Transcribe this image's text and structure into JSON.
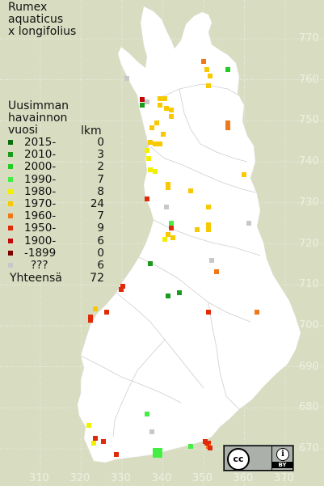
{
  "title": [
    "Rumex",
    "aquaticus",
    "x longifolius"
  ],
  "legend_title": [
    "Uusimman",
    "havainnon",
    "vuosi"
  ],
  "count_header": "lkm",
  "legend": [
    {
      "label": "2015-",
      "count": "0",
      "color": "#0a6e0a"
    },
    {
      "label": "2010-",
      "count": "3",
      "color": "#1c9a1c"
    },
    {
      "label": "2000-",
      "count": "2",
      "color": "#22cc22"
    },
    {
      "label": "1990-",
      "count": "7",
      "color": "#44ee44"
    },
    {
      "label": "1980-",
      "count": "8",
      "color": "#f0f000"
    },
    {
      "label": "1970-",
      "count": "24",
      "color": "#f8c800"
    },
    {
      "label": "1960-",
      "count": "7",
      "color": "#f07818"
    },
    {
      "label": "1950-",
      "count": "9",
      "color": "#e02a0a"
    },
    {
      "label": "1900-",
      "count": "6",
      "color": "#c40808"
    },
    {
      "label": "-1899",
      "count": "0",
      "color": "#7a0000"
    },
    {
      "label": "???",
      "count": "6",
      "color": "#c8c8c8"
    }
  ],
  "total": {
    "label": "Yhteensä",
    "count": "72"
  },
  "y_ticks": [
    "770",
    "760",
    "750",
    "740",
    "730",
    "720",
    "710",
    "700",
    "690",
    "680",
    "670"
  ],
  "x_ticks": [
    "310",
    "320",
    "330",
    "340",
    "350",
    "360",
    "370"
  ],
  "license": {
    "cc": "cc",
    "by": "BY"
  },
  "map_colors": {
    "land": "#ffffff",
    "sea": "#d8dcc0",
    "grid": "#ffffff",
    "borders": "#cccccc"
  }
}
